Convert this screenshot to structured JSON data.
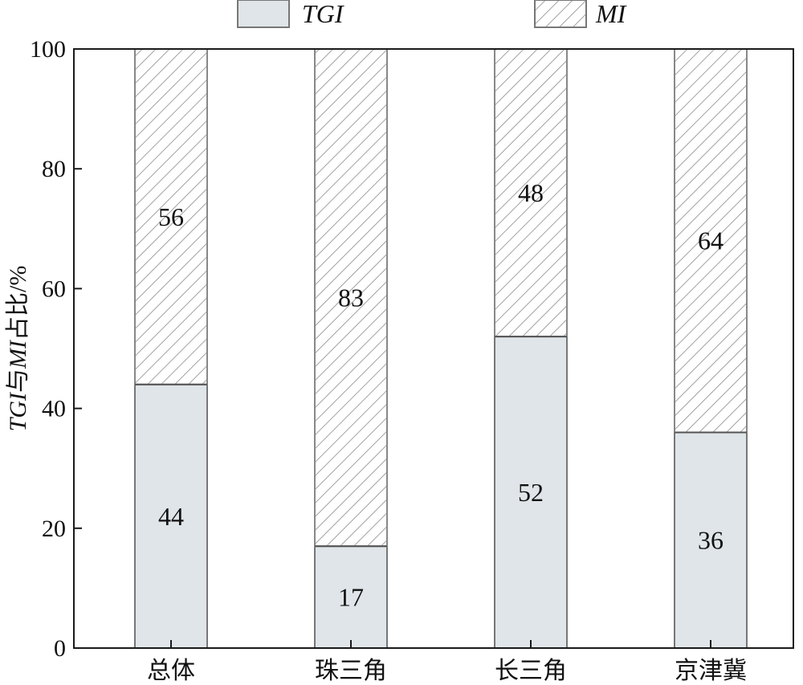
{
  "chart_data": {
    "type": "bar",
    "stacked": true,
    "categories": [
      "总体",
      "珠三角",
      "长三角",
      "京津冀"
    ],
    "series": [
      {
        "name": "TGI",
        "values": [
          44,
          17,
          52,
          36
        ],
        "color": "#dfe5e8",
        "pattern": "solid"
      },
      {
        "name": "MI",
        "values": [
          56,
          83,
          48,
          64
        ],
        "color": "#ffffff",
        "pattern": "diagonal-hatch"
      }
    ],
    "data_labels": [
      [
        "44",
        "17",
        "52",
        "36"
      ],
      [
        "56",
        "83",
        "48",
        "64"
      ]
    ],
    "ylabel": {
      "parts": [
        {
          "text": "TGI",
          "italic": true
        },
        {
          "text": "与",
          "italic": false
        },
        {
          "text": "MI",
          "italic": true
        },
        {
          "text": "占比/%",
          "italic": false
        }
      ]
    },
    "xlabel": "",
    "ylim": [
      0,
      100
    ],
    "yticks": [
      "0",
      "20",
      "40",
      "60",
      "80",
      "100"
    ],
    "ytick_values": [
      0,
      20,
      40,
      60,
      80,
      100
    ],
    "legend": {
      "position": "top",
      "entries": [
        "TGI",
        "MI"
      ]
    },
    "grid": false
  }
}
